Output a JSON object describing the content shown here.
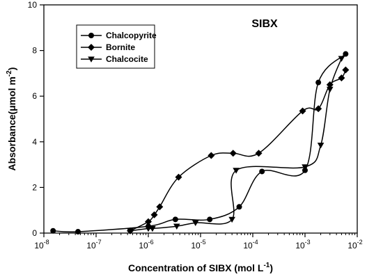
{
  "chart_data": {
    "type": "line",
    "title": "SIBX",
    "xlabel": "Concentration of SIBX (mol L⁻¹)",
    "ylabel": "Absorbance(μmol m⁻²)",
    "x_scale": "log",
    "xlim": [
      1e-08,
      0.01
    ],
    "ylim": [
      0,
      10
    ],
    "x_ticks": [
      {
        "value": 1e-08,
        "base": "10",
        "exp": "-8"
      },
      {
        "value": 1e-07,
        "base": "10",
        "exp": "-7"
      },
      {
        "value": 1e-06,
        "base": "10",
        "exp": "-6"
      },
      {
        "value": 1e-05,
        "base": "10",
        "exp": "-5"
      },
      {
        "value": 0.0001,
        "base": "10",
        "exp": "-4"
      },
      {
        "value": 0.001,
        "base": "10",
        "exp": "-3"
      },
      {
        "value": 0.01,
        "base": "10",
        "exp": "-2"
      }
    ],
    "y_ticks": [
      0,
      2,
      4,
      6,
      8,
      10
    ],
    "y_tick_labels": [
      "0",
      "2",
      "4",
      "6",
      "8",
      "10"
    ],
    "legend_position": "top-left",
    "grid": false,
    "series": [
      {
        "name": "Chalcopyrite",
        "marker": "circle",
        "points": [
          {
            "x": 1.5e-08,
            "y": 0.1
          },
          {
            "x": 4.5e-08,
            "y": 0.06
          },
          {
            "x": 1e-06,
            "y": 0.3
          },
          {
            "x": 3.3e-06,
            "y": 0.6
          },
          {
            "x": 1.5e-05,
            "y": 0.6
          },
          {
            "x": 5.5e-05,
            "y": 1.15
          },
          {
            "x": 0.00015,
            "y": 2.7
          },
          {
            "x": 0.001,
            "y": 2.75
          },
          {
            "x": 0.0018,
            "y": 6.6
          },
          {
            "x": 0.006,
            "y": 7.85
          }
        ]
      },
      {
        "name": "Bornite",
        "marker": "diamond",
        "points": [
          {
            "x": 4.5e-07,
            "y": 0.1
          },
          {
            "x": 1e-06,
            "y": 0.5
          },
          {
            "x": 1.3e-06,
            "y": 0.8
          },
          {
            "x": 1.65e-06,
            "y": 1.15
          },
          {
            "x": 3.8e-06,
            "y": 2.45
          },
          {
            "x": 1.6e-05,
            "y": 3.4
          },
          {
            "x": 4.2e-05,
            "y": 3.5
          },
          {
            "x": 0.00013,
            "y": 3.5
          },
          {
            "x": 0.0009,
            "y": 5.35
          },
          {
            "x": 0.0018,
            "y": 5.45
          },
          {
            "x": 0.003,
            "y": 6.5
          },
          {
            "x": 0.005,
            "y": 6.8
          },
          {
            "x": 0.006,
            "y": 7.15
          }
        ]
      },
      {
        "name": "Chalcocite",
        "marker": "triangle-down",
        "points": [
          {
            "x": 4.5e-07,
            "y": 0.1
          },
          {
            "x": 1e-06,
            "y": 0.2
          },
          {
            "x": 1.2e-06,
            "y": 0.2
          },
          {
            "x": 3.5e-06,
            "y": 0.3
          },
          {
            "x": 8e-06,
            "y": 0.45
          },
          {
            "x": 4e-05,
            "y": 0.6
          },
          {
            "x": 4.8e-05,
            "y": 2.75
          },
          {
            "x": 0.001,
            "y": 2.9
          },
          {
            "x": 0.002,
            "y": 3.85
          },
          {
            "x": 0.003,
            "y": 6.3
          },
          {
            "x": 0.005,
            "y": 7.65
          }
        ]
      }
    ]
  }
}
